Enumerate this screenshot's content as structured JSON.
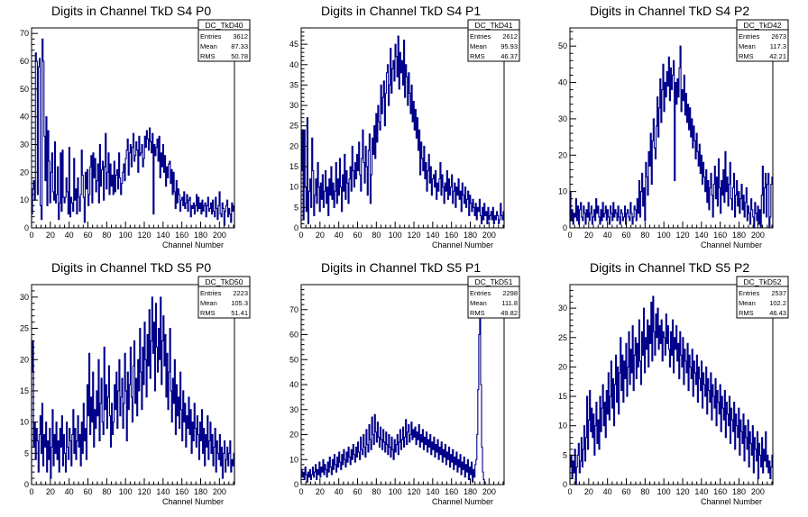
{
  "chart_data": [
    {
      "type": "histogram",
      "title": "Digits in Channel TkD S4 P0",
      "xlabel": "Channel Number",
      "xlim": [
        0,
        216
      ],
      "ylim": [
        0,
        72
      ],
      "xticks": [
        0,
        20,
        40,
        60,
        80,
        100,
        120,
        140,
        160,
        180,
        200
      ],
      "yticks": [
        0,
        10,
        20,
        30,
        40,
        50,
        60,
        70
      ],
      "stats": {
        "name": "DC_TkD40",
        "rows": [
          [
            "Entries",
            "3612"
          ],
          [
            "Mean",
            "87.33"
          ],
          [
            "RMS",
            "50.78"
          ]
        ]
      },
      "values": [
        5,
        14,
        17,
        10,
        63,
        60,
        12,
        58,
        61,
        8,
        3,
        68,
        60,
        33,
        17,
        40,
        8,
        35,
        24,
        9,
        20,
        27,
        13,
        10,
        31,
        9,
        12,
        22,
        3,
        9,
        27,
        6,
        28,
        11,
        9,
        11,
        18,
        13,
        5,
        29,
        4,
        11,
        9,
        6,
        25,
        10,
        14,
        5,
        18,
        11,
        6,
        12,
        28,
        19,
        11,
        2,
        20,
        14,
        21,
        8,
        12,
        22,
        26,
        9,
        27,
        18,
        25,
        13,
        17,
        23,
        9,
        30,
        15,
        21,
        24,
        10,
        22,
        34,
        14,
        20,
        27,
        12,
        23,
        15,
        19,
        12,
        24,
        13,
        19,
        21,
        14,
        27,
        18,
        12,
        16,
        20,
        23,
        17,
        25,
        28,
        32,
        19,
        27,
        30,
        22,
        29,
        34,
        24,
        26,
        31,
        28,
        20,
        33,
        26,
        27,
        30,
        22,
        25,
        33,
        29,
        35,
        32,
        28,
        36,
        31,
        27,
        34,
        5,
        30,
        26,
        29,
        32,
        24,
        33,
        18,
        27,
        22,
        30,
        20,
        26,
        15,
        22,
        18,
        23,
        24,
        16,
        21,
        12,
        20,
        13,
        7,
        17,
        9,
        14,
        12,
        6,
        10,
        11,
        8,
        13,
        7,
        9,
        12,
        6,
        10,
        11,
        4,
        8,
        7,
        9,
        5,
        8,
        12,
        6,
        11,
        7,
        9,
        5,
        10,
        6,
        8,
        9,
        4,
        8,
        11,
        6,
        7,
        9,
        5,
        10,
        6,
        4,
        11,
        7,
        3,
        8,
        13,
        5,
        4,
        9,
        7,
        1,
        6,
        8,
        10,
        4,
        7,
        5,
        2,
        9,
        6,
        8
      ]
    },
    {
      "type": "histogram",
      "title": "Digits in Channel TkD S4 P1",
      "xlabel": "Channel Number",
      "xlim": [
        0,
        216
      ],
      "ylim": [
        0,
        49
      ],
      "xticks": [
        0,
        20,
        40,
        60,
        80,
        100,
        120,
        140,
        160,
        180,
        200
      ],
      "yticks": [
        0,
        5,
        10,
        15,
        20,
        25,
        30,
        35,
        40,
        45
      ],
      "stats": {
        "name": "DC_TkD41",
        "rows": [
          [
            "Entries",
            "2612"
          ],
          [
            "Mean",
            "95.93"
          ],
          [
            "RMS",
            "46.37"
          ]
        ]
      },
      "values": [
        14,
        24,
        2,
        24,
        10,
        4,
        27,
        1,
        9,
        12,
        5,
        22,
        14,
        3,
        8,
        12,
        6,
        16,
        10,
        4,
        11,
        7,
        13,
        5,
        9,
        14,
        6,
        10,
        3,
        12,
        8,
        15,
        7,
        11,
        5,
        9,
        16,
        6,
        12,
        8,
        17,
        10,
        4,
        13,
        9,
        18,
        7,
        14,
        11,
        6,
        12,
        15,
        9,
        20,
        14,
        10,
        16,
        12,
        18,
        14,
        21,
        13,
        9,
        17,
        24,
        16,
        11,
        20,
        15,
        8,
        19,
        23,
        6,
        13,
        22,
        18,
        25,
        17,
        28,
        21,
        30,
        26,
        24,
        35,
        28,
        32,
        36,
        25,
        33,
        38,
        40,
        30,
        35,
        44,
        33,
        39,
        41,
        36,
        45,
        42,
        37,
        47,
        34,
        43,
        38,
        41,
        35,
        46,
        32,
        40,
        37,
        30,
        38,
        33,
        28,
        35,
        26,
        31,
        24,
        29,
        22,
        27,
        19,
        24,
        13,
        21,
        17,
        14,
        20,
        12,
        16,
        9,
        14,
        18,
        11,
        15,
        8,
        12,
        13,
        10,
        14,
        7,
        11,
        9,
        12,
        16,
        8,
        13,
        10,
        6,
        11,
        9,
        14,
        7,
        12,
        8,
        10,
        13,
        6,
        9,
        11,
        5,
        10,
        8,
        12,
        7,
        9,
        4,
        11,
        8,
        6,
        10,
        5,
        7,
        9,
        3,
        8,
        6,
        4,
        7,
        5,
        3,
        6,
        2,
        5,
        4,
        7,
        3,
        1,
        5,
        2,
        6,
        3,
        4,
        1,
        5,
        2,
        3,
        4,
        2,
        5,
        1,
        3,
        2,
        4,
        3,
        1,
        2,
        6,
        3,
        2,
        4
      ]
    },
    {
      "type": "histogram",
      "title": "Digits in Channel TkD S4 P2",
      "xlabel": "Channel Number",
      "xlim": [
        0,
        216
      ],
      "ylim": [
        0,
        55
      ],
      "xticks": [
        0,
        20,
        40,
        60,
        80,
        100,
        120,
        140,
        160,
        180,
        200
      ],
      "yticks": [
        0,
        10,
        20,
        30,
        40,
        50
      ],
      "stats": {
        "name": "DC_TkD42",
        "rows": [
          [
            "Entries",
            "2673"
          ],
          [
            "Mean",
            "117.3"
          ],
          [
            "RMS",
            "42.21"
          ]
        ]
      },
      "values": [
        10,
        2,
        5,
        1,
        4,
        3,
        8,
        2,
        6,
        1,
        5,
        7,
        3,
        2,
        6,
        4,
        1,
        5,
        3,
        7,
        2,
        4,
        6,
        1,
        3,
        5,
        2,
        8,
        4,
        6,
        3,
        1,
        5,
        2,
        7,
        3,
        4,
        6,
        2,
        5,
        3,
        1,
        6,
        4,
        2,
        7,
        3,
        5,
        4,
        2,
        6,
        3,
        1,
        5,
        4,
        2,
        3,
        6,
        1,
        4,
        5,
        3,
        2,
        7,
        4,
        1,
        3,
        6,
        5,
        2,
        8,
        4,
        13,
        3,
        10,
        15,
        6,
        11,
        2,
        18,
        14,
        9,
        21,
        17,
        26,
        12,
        24,
        30,
        22,
        19,
        28,
        36,
        25,
        33,
        41,
        29,
        38,
        45,
        32,
        40,
        36,
        43,
        39,
        47,
        35,
        44,
        38,
        42,
        46,
        13,
        40,
        34,
        41,
        36,
        44,
        50,
        32,
        38,
        35,
        42,
        31,
        37,
        29,
        34,
        27,
        33,
        25,
        30,
        22,
        28,
        24,
        19,
        26,
        21,
        17,
        23,
        15,
        20,
        12,
        18,
        14,
        10,
        16,
        7,
        13,
        5,
        11,
        15,
        9,
        3,
        12,
        17,
        8,
        14,
        6,
        19,
        11,
        4,
        13,
        9,
        16,
        7,
        21,
        10,
        14,
        6,
        12,
        18,
        8,
        5,
        11,
        15,
        3,
        9,
        13,
        6,
        10,
        4,
        8,
        12,
        5,
        9,
        3,
        7,
        11,
        2,
        6,
        4,
        1,
        8,
        5,
        3,
        0,
        7,
        4,
        2,
        6,
        1,
        5,
        0,
        9,
        17,
        4,
        11,
        15,
        3,
        12,
        15,
        0,
        3,
        12,
        14
      ]
    },
    {
      "type": "histogram",
      "title": "Digits in Channel TkD S5 P0",
      "xlabel": "Channel Number",
      "xlim": [
        0,
        216
      ],
      "ylim": [
        0,
        32
      ],
      "xticks": [
        0,
        20,
        40,
        60,
        80,
        100,
        120,
        140,
        160,
        180,
        200
      ],
      "yticks": [
        0,
        5,
        10,
        15,
        20,
        25,
        30
      ],
      "stats": {
        "name": "DC_TkD50",
        "rows": [
          [
            "Entries",
            "2223"
          ],
          [
            "Mean",
            "105.3"
          ],
          [
            "RMS",
            "51.41"
          ]
        ]
      },
      "values": [
        18,
        23,
        6,
        10,
        4,
        9,
        7,
        2,
        8,
        11,
        5,
        13,
        3,
        8,
        6,
        10,
        2,
        7,
        4,
        9,
        1,
        6,
        12,
        3,
        8,
        5,
        10,
        4,
        7,
        2,
        9,
        6,
        11,
        3,
        8,
        5,
        2,
        10,
        6,
        4,
        9,
        7,
        3,
        8,
        12,
        5,
        9,
        4,
        7,
        11,
        6,
        8,
        3,
        10,
        5,
        13,
        7,
        9,
        4,
        16,
        11,
        21,
        8,
        14,
        10,
        18,
        6,
        12,
        9,
        15,
        11,
        20,
        7,
        13,
        17,
        10,
        8,
        22,
        12,
        16,
        9,
        14,
        19,
        11,
        6,
        13,
        8,
        10,
        16,
        12,
        18,
        9,
        15,
        20,
        11,
        14,
        17,
        9,
        13,
        21,
        15,
        7,
        18,
        12,
        16,
        22,
        14,
        10,
        19,
        23,
        13,
        17,
        11,
        20,
        15,
        25,
        18,
        12,
        22,
        16,
        26,
        20,
        14,
        24,
        19,
        28,
        17,
        23,
        30,
        21,
        26,
        15,
        29,
        22,
        18,
        25,
        20,
        30,
        16,
        23,
        27,
        19,
        24,
        14,
        21,
        12,
        18,
        25,
        15,
        10,
        17,
        13,
        20,
        8,
        16,
        11,
        14,
        9,
        18,
        12,
        7,
        15,
        10,
        13,
        6,
        11,
        9,
        14,
        8,
        12,
        5,
        10,
        7,
        13,
        9,
        6,
        11,
        8,
        4,
        10,
        7,
        12,
        5,
        9,
        3,
        8,
        6,
        11,
        4,
        7,
        10,
        5,
        8,
        3,
        6,
        9,
        2,
        7,
        5,
        4,
        8,
        3,
        6,
        1,
        5,
        7,
        2,
        4,
        6,
        3,
        5,
        7,
        2,
        4,
        3,
        5
      ]
    },
    {
      "type": "histogram",
      "title": "Digits in Channel TkD S5 P1",
      "xlabel": "Channel Number",
      "xlim": [
        0,
        216
      ],
      "ylim": [
        0,
        80
      ],
      "xticks": [
        0,
        20,
        40,
        60,
        80,
        100,
        120,
        140,
        160,
        180,
        200
      ],
      "yticks": [
        0,
        10,
        20,
        30,
        40,
        50,
        60,
        70
      ],
      "stats": {
        "name": "DC_TkD51",
        "rows": [
          [
            "Entries",
            "2298"
          ],
          [
            "Mean",
            "111.8"
          ],
          [
            "RMS",
            "49.82"
          ]
        ]
      },
      "values": [
        6,
        3,
        5,
        2,
        7,
        4,
        1,
        5,
        3,
        6,
        2,
        4,
        7,
        3,
        5,
        8,
        2,
        6,
        4,
        9,
        3,
        7,
        5,
        10,
        4,
        8,
        6,
        3,
        9,
        5,
        11,
        7,
        4,
        10,
        6,
        12,
        8,
        5,
        11,
        7,
        13,
        9,
        6,
        12,
        8,
        14,
        10,
        7,
        13,
        9,
        15,
        11,
        8,
        14,
        10,
        16,
        12,
        9,
        15,
        11,
        17,
        13,
        10,
        19,
        14,
        12,
        20,
        15,
        11,
        22,
        16,
        13,
        24,
        18,
        14,
        27,
        20,
        16,
        28,
        21,
        17,
        25,
        19,
        15,
        23,
        18,
        14,
        22,
        17,
        13,
        21,
        16,
        12,
        20,
        15,
        11,
        19,
        14,
        10,
        18,
        13,
        16,
        20,
        12,
        17,
        22,
        14,
        18,
        23,
        15,
        19,
        26,
        16,
        21,
        24,
        17,
        20,
        25,
        18,
        22,
        19,
        23,
        16,
        21,
        18,
        24,
        15,
        20,
        17,
        22,
        14,
        19,
        16,
        21,
        13,
        18,
        15,
        20,
        12,
        17,
        14,
        19,
        11,
        16,
        13,
        18,
        10,
        15,
        12,
        17,
        9,
        14,
        11,
        16,
        8,
        13,
        10,
        15,
        7,
        12,
        9,
        14,
        6,
        11,
        8,
        13,
        5,
        10,
        7,
        12,
        4,
        9,
        6,
        11,
        3,
        8,
        5,
        10,
        2,
        7,
        4,
        9,
        1,
        6,
        3,
        8,
        10,
        20,
        38,
        60,
        72,
        40,
        15,
        5,
        2,
        1,
        0,
        0,
        0,
        0,
        0,
        0,
        0,
        0,
        0,
        0,
        0,
        0,
        0,
        0,
        0,
        0,
        0,
        0,
        0,
        0
      ]
    },
    {
      "type": "histogram",
      "title": "Digits in Channel TkD S5 P2",
      "xlabel": "Channel Number",
      "xlim": [
        0,
        216
      ],
      "ylim": [
        0,
        34
      ],
      "xticks": [
        0,
        20,
        40,
        60,
        80,
        100,
        120,
        140,
        160,
        180,
        200
      ],
      "yticks": [
        0,
        5,
        10,
        15,
        20,
        25,
        30
      ],
      "stats": {
        "name": "DC_TkD52",
        "rows": [
          [
            "Entries",
            "2537"
          ],
          [
            "Mean",
            "102.2"
          ],
          [
            "RMS",
            "46.43"
          ]
        ]
      },
      "values": [
        3,
        5,
        1,
        4,
        2,
        6,
        0,
        3,
        5,
        7,
        2,
        4,
        8,
        3,
        6,
        10,
        4,
        8,
        15,
        6,
        11,
        16,
        9,
        13,
        8,
        12,
        5,
        10,
        14,
        7,
        11,
        6,
        15,
        9,
        13,
        17,
        10,
        14,
        8,
        16,
        12,
        19,
        11,
        15,
        21,
        13,
        18,
        10,
        17,
        22,
        14,
        20,
        12,
        19,
        25,
        16,
        22,
        14,
        21,
        18,
        24,
        15,
        20,
        26,
        17,
        23,
        19,
        27,
        16,
        22,
        25,
        18,
        24,
        20,
        28,
        21,
        17,
        26,
        22,
        30,
        19,
        25,
        23,
        28,
        20,
        27,
        24,
        31,
        21,
        32,
        26,
        22,
        29,
        25,
        30,
        23,
        27,
        24,
        28,
        21,
        26,
        25,
        22,
        29,
        24,
        27,
        23,
        20,
        26,
        22,
        28,
        19,
        25,
        23,
        27,
        21,
        24,
        18,
        26,
        22,
        20,
        25,
        17,
        23,
        21,
        19,
        24,
        16,
        22,
        20,
        18,
        23,
        15,
        21,
        19,
        17,
        22,
        14,
        20,
        18,
        16,
        21,
        13,
        19,
        17,
        15,
        20,
        12,
        18,
        16,
        14,
        19,
        11,
        17,
        15,
        13,
        18,
        10,
        16,
        14,
        12,
        17,
        9,
        15,
        13,
        11,
        16,
        8,
        14,
        12,
        10,
        15,
        7,
        13,
        11,
        9,
        14,
        6,
        12,
        10,
        8,
        13,
        5,
        11,
        9,
        7,
        12,
        4,
        10,
        8,
        6,
        11,
        3,
        9,
        7,
        5,
        10,
        2,
        8,
        6,
        4,
        9,
        1,
        7,
        5,
        3,
        8,
        2,
        6,
        4,
        9,
        3,
        5,
        2,
        4,
        1,
        3,
        5
      ]
    }
  ]
}
